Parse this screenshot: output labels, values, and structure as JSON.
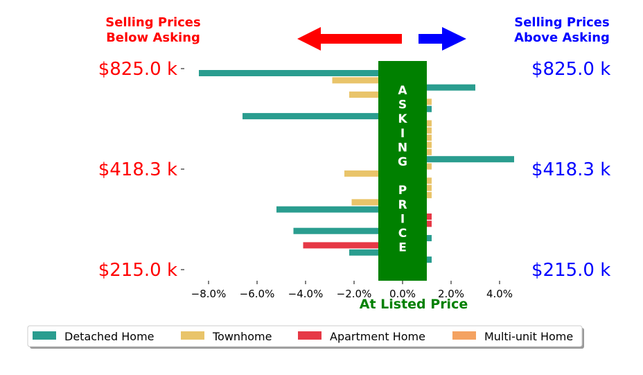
{
  "chart_data": {
    "type": "bar",
    "orientation": "horizontal",
    "xlabel": "At Listed Price",
    "xlim": [
      -9.0,
      4.6
    ],
    "x_ticks": [
      -8,
      -6,
      -4,
      -2,
      0,
      2,
      4
    ],
    "x_tick_labels": [
      "−8.0%",
      "−6.0%",
      "−4.0%",
      "−2.0%",
      "0.0%",
      "2.0%",
      "4.0%"
    ],
    "y_tick_labels": [
      "$825.0 k",
      "$418.3 k",
      "$215.0 k"
    ],
    "left_header": "Selling Prices\nBelow Asking",
    "right_header": "Selling Prices\nAbove Asking",
    "center_label": "ASKING PRICE",
    "center_band": [
      -1.0,
      1.0
    ],
    "series": [
      {
        "name": "Detached Home",
        "color": "#2a9d8f"
      },
      {
        "name": "Townhome",
        "color": "#e9c46a"
      },
      {
        "name": "Apartment Home",
        "color": "#e63946"
      },
      {
        "name": "Multi-unit Home",
        "color": "#f4a261"
      }
    ],
    "bars": [
      {
        "series": "Detached Home",
        "value": -8.4
      },
      {
        "series": "Townhome",
        "value": -2.9
      },
      {
        "series": "Detached Home",
        "value": 3.0
      },
      {
        "series": "Townhome",
        "value": -2.2
      },
      {
        "series": "Townhome",
        "value": 1.2
      },
      {
        "series": "Detached Home",
        "value": 1.2
      },
      {
        "series": "Detached Home",
        "value": -6.6
      },
      {
        "series": "Townhome",
        "value": 1.2
      },
      {
        "series": "Townhome",
        "value": 1.2
      },
      {
        "series": "Townhome",
        "value": 1.2
      },
      {
        "series": "Townhome",
        "value": 1.2
      },
      {
        "series": "Townhome",
        "value": 1.2
      },
      {
        "series": "Detached Home",
        "value": 4.6
      },
      {
        "series": "Townhome",
        "value": 1.2
      },
      {
        "series": "Townhome",
        "value": -2.4
      },
      {
        "series": "Townhome",
        "value": 1.2
      },
      {
        "series": "Townhome",
        "value": 1.2
      },
      {
        "series": "Townhome",
        "value": 1.2
      },
      {
        "series": "Townhome",
        "value": -2.1
      },
      {
        "series": "Detached Home",
        "value": -5.2
      },
      {
        "series": "Apartment Home",
        "value": 1.2
      },
      {
        "series": "Apartment Home",
        "value": 1.2
      },
      {
        "series": "Detached Home",
        "value": -4.5
      },
      {
        "series": "Detached Home",
        "value": 1.2
      },
      {
        "series": "Apartment Home",
        "value": -4.1
      },
      {
        "series": "Detached Home",
        "value": -2.2
      },
      {
        "series": "Detached Home",
        "value": 1.2
      }
    ],
    "legend_position": "bottom",
    "colors": {
      "below": "#ff0000",
      "above": "#0000ff",
      "asking": "#008000"
    }
  }
}
